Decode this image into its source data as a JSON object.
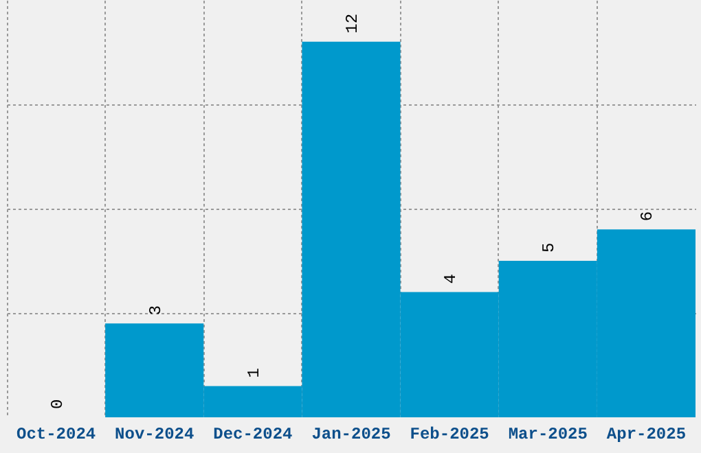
{
  "chart_data": {
    "type": "bar",
    "categories": [
      "Oct-2024",
      "Nov-2024",
      "Dec-2024",
      "Jan-2025",
      "Feb-2025",
      "Mar-2025",
      "Apr-2025"
    ],
    "values": [
      0,
      3,
      1,
      12,
      4,
      5,
      6
    ],
    "color": "#0099cc",
    "ylim": [
      0,
      13.33
    ],
    "yticks": [
      {
        "value": 3.33,
        "label": null
      },
      {
        "value": 6.67,
        "label": null
      },
      {
        "value": 10,
        "label": null
      }
    ],
    "grid": true,
    "tick_labels": "x",
    "data_labels": true
  }
}
